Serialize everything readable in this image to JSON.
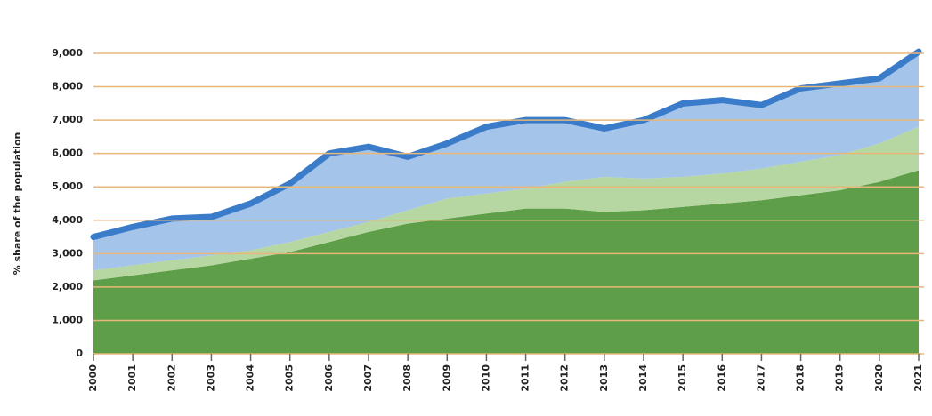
{
  "chart_data": {
    "type": "stacked_area",
    "ylabel": "% share of the population",
    "categories": [
      "2000",
      "2001",
      "2002",
      "2003",
      "2004",
      "2005",
      "2006",
      "2007",
      "2008",
      "2009",
      "2010",
      "2011",
      "2012",
      "2013",
      "2014",
      "2015",
      "2016",
      "2017",
      "2018",
      "2019",
      "2020",
      "2021"
    ],
    "series": [
      {
        "color": "#5e9e48",
        "values": [
          2200,
          2350,
          2500,
          2650,
          2850,
          3050,
          3350,
          3650,
          3900,
          4050,
          4200,
          4350,
          4350,
          4250,
          4300,
          4400,
          4500,
          4600,
          4750,
          4900,
          5150,
          5500
        ]
      },
      {
        "color": "#b6d7a2",
        "values": [
          300,
          300,
          300,
          300,
          250,
          300,
          300,
          300,
          400,
          600,
          600,
          600,
          800,
          1050,
          950,
          900,
          900,
          950,
          1000,
          1050,
          1150,
          1300
        ]
      },
      {
        "color": "#a4c4e9",
        "values": [
          1000,
          1150,
          1250,
          1150,
          1400,
          1750,
          2350,
          2250,
          1600,
          1650,
          2000,
          2050,
          1850,
          1450,
          1750,
          2200,
          2200,
          1900,
          2200,
          2150,
          1950,
          2250
        ]
      }
    ],
    "outline_color": "#3a7cc9",
    "ylim": [
      0,
      9000
    ],
    "yticks": [
      0,
      {
        "value": 1000,
        "label": "1,000"
      },
      {
        "value": 2000,
        "label": "2,000"
      },
      {
        "value": 3000,
        "label": "3,000"
      },
      {
        "value": 4000,
        "label": "4,000"
      },
      {
        "value": 5000,
        "label": "5,000"
      },
      {
        "value": 6000,
        "label": "6,000"
      },
      {
        "value": 7000,
        "label": "7,000"
      },
      {
        "value": 8000,
        "label": "8,000"
      },
      {
        "value": 9000,
        "label": "9,000"
      }
    ],
    "grid": true,
    "grid_color": "#e7b77a"
  }
}
